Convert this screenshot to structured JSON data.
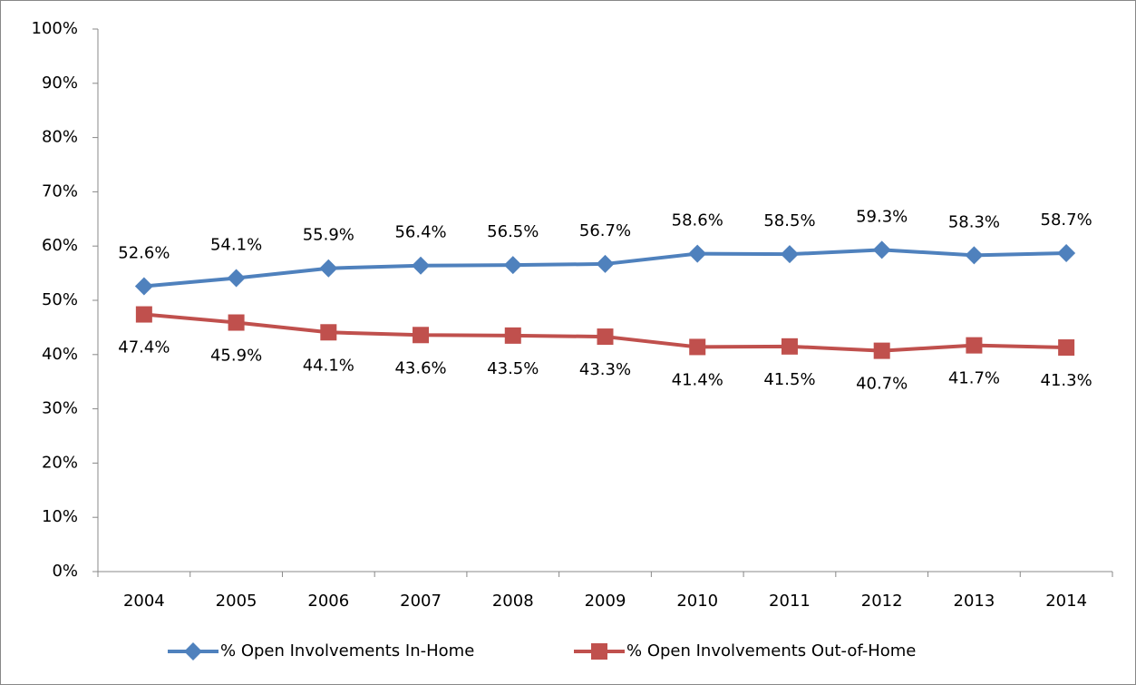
{
  "chart_data": {
    "type": "line",
    "categories": [
      "2004",
      "2005",
      "2006",
      "2007",
      "2008",
      "2009",
      "2010",
      "2011",
      "2012",
      "2013",
      "2014"
    ],
    "series": [
      {
        "name": "% Open Involvements In-Home",
        "color": "#4f81bd",
        "marker": "diamond",
        "values": [
          52.6,
          54.1,
          55.9,
          56.4,
          56.5,
          56.7,
          58.6,
          58.5,
          59.3,
          58.3,
          58.7
        ],
        "value_labels": [
          "52.6%",
          "54.1%",
          "55.9%",
          "56.4%",
          "56.5%",
          "56.7%",
          "58.6%",
          "58.5%",
          "59.3%",
          "58.3%",
          "58.7%"
        ],
        "label_position": "above"
      },
      {
        "name": "% Open Involvements Out-of-Home",
        "color": "#c0504d",
        "marker": "square",
        "values": [
          47.4,
          45.9,
          44.1,
          43.6,
          43.5,
          43.3,
          41.4,
          41.5,
          40.7,
          41.7,
          41.3
        ],
        "value_labels": [
          "47.4%",
          "45.9%",
          "44.1%",
          "43.6%",
          "43.5%",
          "43.3%",
          "41.4%",
          "41.5%",
          "40.7%",
          "41.7%",
          "41.3%"
        ],
        "label_position": "below"
      }
    ],
    "ylim": [
      0,
      100
    ],
    "yticks": [
      {
        "value": 0,
        "label": "0%"
      },
      {
        "value": 10,
        "label": "10%"
      },
      {
        "value": 20,
        "label": "20%"
      },
      {
        "value": 30,
        "label": "30%"
      },
      {
        "value": 40,
        "label": "40%"
      },
      {
        "value": 50,
        "label": "50%"
      },
      {
        "value": 60,
        "label": "60%"
      },
      {
        "value": 70,
        "label": "70%"
      },
      {
        "value": 80,
        "label": "80%"
      },
      {
        "value": 90,
        "label": "90%"
      },
      {
        "value": 100,
        "label": "100%"
      }
    ],
    "grid": false,
    "legend": "bottom"
  }
}
